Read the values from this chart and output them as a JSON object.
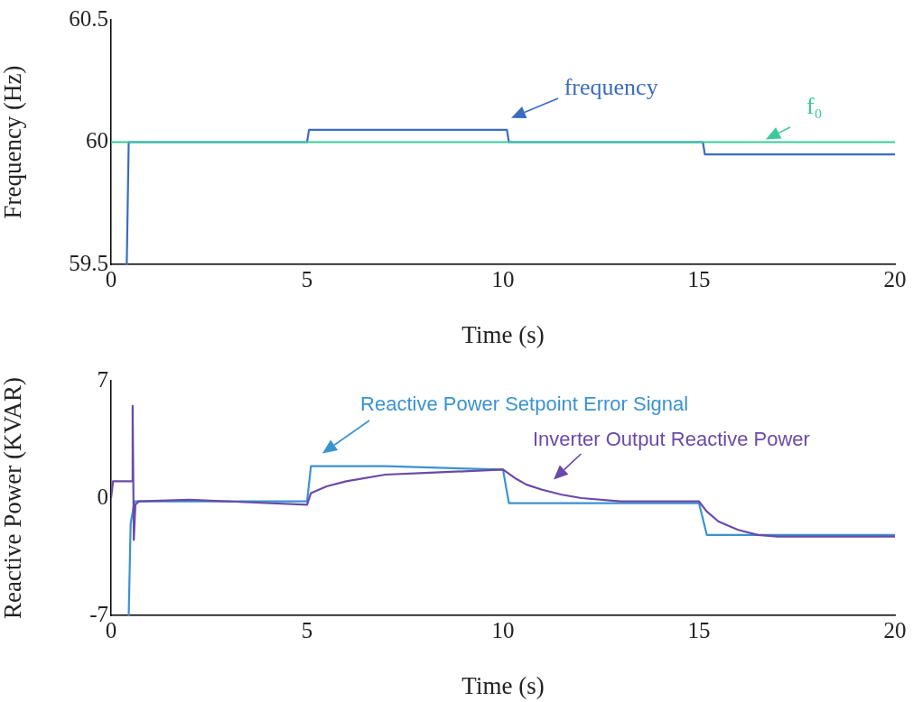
{
  "chart_data": [
    {
      "type": "line",
      "xlabel": "Time (s)",
      "ylabel": "Frequency (Hz)",
      "xlim": [
        0,
        20
      ],
      "xticks": [
        0,
        5,
        10,
        15,
        20
      ],
      "ylim": [
        59.5,
        60.5
      ],
      "yticks": [
        59.5,
        60,
        60.5
      ],
      "grid": false,
      "legend": false,
      "marker": "none",
      "series": [
        {
          "name": "f₀",
          "color": "#3cc99c",
          "x": [
            0,
            20
          ],
          "values": [
            60,
            60
          ]
        },
        {
          "name": "frequency",
          "color": "#3a6cc0",
          "x": [
            0.4,
            0.45,
            0.5,
            5.0,
            5.05,
            10.1,
            10.15,
            15.1,
            15.15,
            20
          ],
          "values": [
            59.5,
            60.0,
            60.0,
            60.0,
            60.05,
            60.05,
            60.0,
            60.0,
            59.95,
            59.95
          ]
        }
      ]
    },
    {
      "type": "line",
      "xlabel": "Time (s)",
      "ylabel": "Reactive Power (KVAR)",
      "xlim": [
        0,
        20
      ],
      "xticks": [
        0,
        5,
        10,
        15,
        20
      ],
      "ylim": [
        -7,
        7
      ],
      "yticks": [
        -7,
        0,
        7
      ],
      "grid": false,
      "legend": false,
      "marker": "none",
      "series": [
        {
          "name": "Inverter Output Reactive Power",
          "color": "#6a4aa8",
          "x": [
            0,
            0.05,
            0.5,
            0.53,
            0.55,
            0.58,
            0.62,
            0.7,
            2,
            5.0,
            5.1,
            5.5,
            6,
            7,
            8,
            9,
            10,
            10.3,
            10.6,
            11,
            11.5,
            12,
            13,
            15,
            15.2,
            15.5,
            16,
            16.5,
            17,
            20
          ],
          "values": [
            0,
            1.0,
            1.0,
            1.0,
            5.5,
            -2.5,
            -0.4,
            -0.2,
            -0.1,
            -0.4,
            0.3,
            0.7,
            1.0,
            1.4,
            1.5,
            1.6,
            1.7,
            1.2,
            0.8,
            0.5,
            0.2,
            0,
            -0.2,
            -0.2,
            -0.8,
            -1.4,
            -1.9,
            -2.2,
            -2.3,
            -2.3
          ]
        },
        {
          "name": "Reactive Power Setpoint Error Signal",
          "color": "#3a93d0",
          "x": [
            0.45,
            0.5,
            0.6,
            5.0,
            5.1,
            7,
            10.0,
            10.15,
            15.0,
            15.2,
            20
          ],
          "values": [
            -7,
            -1.5,
            -0.2,
            -0.2,
            1.9,
            1.9,
            1.7,
            -0.3,
            -0.3,
            -2.2,
            -2.2
          ]
        }
      ]
    }
  ]
}
